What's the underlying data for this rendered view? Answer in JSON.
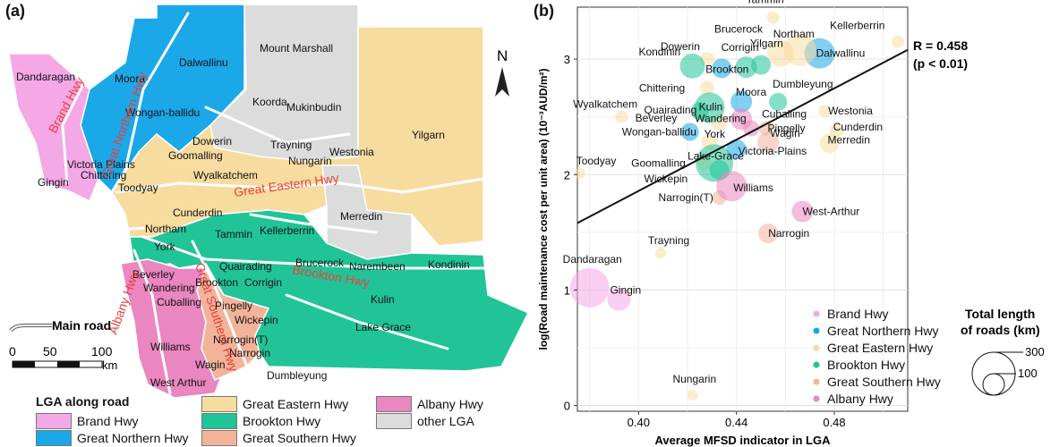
{
  "panels": {
    "a": "(a)",
    "b": "(b)"
  },
  "map": {
    "north": "N",
    "mainroad_label": "Main road",
    "scale_ticks": [
      "0",
      "50",
      "100"
    ],
    "scale_unit": "km",
    "colors": {
      "brand": "#f4a8e6",
      "northern": "#1aa8e8",
      "eastern": "#f7dca0",
      "brookton": "#21c497",
      "southern": "#f3b39b",
      "albany": "#ea86c0",
      "other": "#dcdcdc",
      "road_label": "#e8413a"
    },
    "lga_labels": [
      "Dandaragan",
      "Moora",
      "Dalwallinu",
      "Mount Marshall",
      "Koorda",
      "Mukinbudin",
      "Wongan-ballidu",
      "Victoria Plains",
      "Gingin",
      "Chittering",
      "Toodyay",
      "Dowerin",
      "Goomalling",
      "Trayning",
      "Nungarin",
      "Westonia",
      "Yilgarn",
      "Wyalkatchem",
      "Cunderdin",
      "Northam",
      "York",
      "Tammin",
      "Kellerberrin",
      "Merredin",
      "Brucerock",
      "Quairading",
      "Narembeen",
      "Beverley",
      "Brookton",
      "Corrigin",
      "Kondinin",
      "Pingelly",
      "Wandering",
      "Cuballing",
      "Wickepin",
      "Kulin",
      "Narrogin(T)",
      "Narrogin",
      "Lake Grace",
      "Williams",
      "Dumbleyung",
      "Wagin",
      "West Arthur"
    ],
    "road_labels": [
      "Brand Hwy",
      "Great Northern Hwy",
      "Great Eastern Hwy",
      "Brookton Hwy",
      "Albany Hwy",
      "Great Southern Hwy"
    ],
    "legend_title": "LGA along road",
    "legend": [
      {
        "label": "Brand Hwy",
        "color": "#f4a8e6"
      },
      {
        "label": "Great Northern Hwy",
        "color": "#1aa8e8"
      },
      {
        "label": "Great Eastern Hwy",
        "color": "#f7dca0"
      },
      {
        "label": "Brookton Hwy",
        "color": "#21c497"
      },
      {
        "label": "Great Southern Hwy",
        "color": "#f3b39b"
      },
      {
        "label": "Albany Hwy",
        "color": "#ea86c0"
      },
      {
        "label": "other LGA",
        "color": "#dcdcdc"
      }
    ]
  },
  "chart_data": {
    "type": "scatter",
    "xlabel": "Average MFSD indicator in LGA",
    "ylabel": "log(Road maintenance cost per unit area) (10⁻³AUD/m²)",
    "xlim": [
      0.375,
      0.51
    ],
    "ylim": [
      -0.05,
      3.45
    ],
    "xticks": [
      0.4,
      0.44,
      0.48
    ],
    "xtick_labels": [
      "0.40",
      "0.44",
      "0.48"
    ],
    "yticks": [
      0,
      1,
      2,
      3
    ],
    "grid": true,
    "regression": {
      "x": [
        0.375,
        0.51
      ],
      "y": [
        1.58,
        3.08
      ],
      "label_r": "R = 0.458",
      "label_p": "(p < 0.01)"
    },
    "series": [
      {
        "name": "Brand Hwy",
        "color": "#f4a8e6"
      },
      {
        "name": "Great Northern Hwy",
        "color": "#1aa8e8"
      },
      {
        "name": "Great Eastern Hwy",
        "color": "#f7dca0"
      },
      {
        "name": "Brookton Hwy",
        "color": "#21c497"
      },
      {
        "name": "Great Southern Hwy",
        "color": "#f3b39b"
      },
      {
        "name": "Albany Hwy",
        "color": "#ea86c0"
      }
    ],
    "points": [
      {
        "name": "Dandaragan",
        "x": 0.38,
        "y": 1.02,
        "series": 0,
        "r": 22
      },
      {
        "name": "Gingin",
        "x": 0.392,
        "y": 0.92,
        "series": 0,
        "r": 13
      },
      {
        "name": "Moora",
        "x": 0.442,
        "y": 2.63,
        "series": 1,
        "r": 12
      },
      {
        "name": "Dalwallinu",
        "x": 0.474,
        "y": 3.05,
        "series": 1,
        "r": 17
      },
      {
        "name": "Wongan-ballidu",
        "x": 0.421,
        "y": 2.37,
        "series": 1,
        "r": 10
      },
      {
        "name": "Victoria-Plains",
        "x": 0.44,
        "y": 2.22,
        "series": 1,
        "r": 11
      },
      {
        "name": "Brookton",
        "x": 0.434,
        "y": 2.92,
        "series": 1,
        "r": 11
      },
      {
        "name": "Tammin",
        "x": 0.455,
        "y": 3.36,
        "series": 2,
        "r": 7
      },
      {
        "name": "Northam",
        "x": 0.466,
        "y": 3.08,
        "series": 2,
        "r": 18
      },
      {
        "name": "Kellerberrin",
        "x": 0.506,
        "y": 3.15,
        "series": 2,
        "r": 7
      },
      {
        "name": "Yilgarn",
        "x": 0.458,
        "y": 3.05,
        "series": 2,
        "r": 15
      },
      {
        "name": "Dowerin",
        "x": 0.428,
        "y": 3.0,
        "series": 2,
        "r": 8
      },
      {
        "name": "Chittering",
        "x": 0.428,
        "y": 2.75,
        "series": 2,
        "r": 8
      },
      {
        "name": "Quairading",
        "x": 0.433,
        "y": 2.45,
        "series": 2,
        "r": 9
      },
      {
        "name": "Westonia",
        "x": 0.476,
        "y": 2.55,
        "series": 2,
        "r": 7
      },
      {
        "name": "Cunderdin",
        "x": 0.481,
        "y": 2.38,
        "series": 2,
        "r": 8
      },
      {
        "name": "Merredin",
        "x": 0.478,
        "y": 2.27,
        "series": 2,
        "r": 11
      },
      {
        "name": "Wyalkatchem",
        "x": 0.393,
        "y": 2.5,
        "series": 2,
        "r": 7
      },
      {
        "name": "Toodyay",
        "x": 0.376,
        "y": 2.01,
        "series": 2,
        "r": 6
      },
      {
        "name": "York",
        "x": 0.429,
        "y": 2.28,
        "series": 2,
        "r": 9
      },
      {
        "name": "Goomalling",
        "x": 0.427,
        "y": 2.1,
        "series": 2,
        "r": 8
      },
      {
        "name": "Trayning",
        "x": 0.409,
        "y": 1.32,
        "series": 2,
        "r": 6
      },
      {
        "name": "Nungarin",
        "x": 0.422,
        "y": 0.09,
        "series": 2,
        "r": 6
      },
      {
        "name": "Kondinin",
        "x": 0.422,
        "y": 2.94,
        "series": 3,
        "r": 14
      },
      {
        "name": "Corrigin",
        "x": 0.444,
        "y": 2.93,
        "series": 3,
        "r": 12
      },
      {
        "name": "Brucerock",
        "x": 0.45,
        "y": 2.95,
        "series": 3,
        "r": 11
      },
      {
        "name": "Kulin",
        "x": 0.429,
        "y": 2.58,
        "series": 3,
        "r": 17
      },
      {
        "name": "Beverley",
        "x": 0.425,
        "y": 2.55,
        "series": 3,
        "r": 10
      },
      {
        "name": "Lake-Grace",
        "x": 0.431,
        "y": 2.1,
        "series": 3,
        "r": 21
      },
      {
        "name": "Wickepin",
        "x": 0.433,
        "y": 2.04,
        "series": 3,
        "r": 11
      },
      {
        "name": "Dumbleyung",
        "x": 0.457,
        "y": 2.63,
        "series": 3,
        "r": 10
      },
      {
        "name": "Pingelly",
        "x": 0.452,
        "y": 2.4,
        "series": 4,
        "r": 8
      },
      {
        "name": "Wagin",
        "x": 0.453,
        "y": 2.28,
        "series": 4,
        "r": 12
      },
      {
        "name": "Narrogin(T)",
        "x": 0.433,
        "y": 1.8,
        "series": 4,
        "r": 8
      },
      {
        "name": "Narrogin",
        "x": 0.453,
        "y": 1.49,
        "series": 4,
        "r": 11
      },
      {
        "name": "Cuballing",
        "x": 0.446,
        "y": 2.4,
        "series": 5,
        "r": 9
      },
      {
        "name": "Wandering",
        "x": 0.442,
        "y": 2.48,
        "series": 5,
        "r": 12
      },
      {
        "name": "Williams",
        "x": 0.438,
        "y": 1.9,
        "series": 5,
        "r": 17
      },
      {
        "name": "West-Arthur",
        "x": 0.467,
        "y": 1.68,
        "series": 5,
        "r": 12
      }
    ],
    "size_legend": {
      "title_line1": "Total length",
      "title_line2": "of roads (km)",
      "values": [
        "300",
        "100"
      ]
    }
  }
}
